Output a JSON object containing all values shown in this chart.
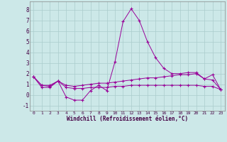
{
  "xlabel": "Windchill (Refroidissement éolien,°C)",
  "background_color": "#cce8e8",
  "grid_color": "#aacccc",
  "line_color": "#990099",
  "x": [
    0,
    1,
    2,
    3,
    4,
    5,
    6,
    7,
    8,
    9,
    10,
    11,
    12,
    13,
    14,
    15,
    16,
    17,
    18,
    19,
    20,
    21,
    22,
    23
  ],
  "line1": [
    1.7,
    0.7,
    0.7,
    1.3,
    -0.2,
    -0.5,
    -0.5,
    0.4,
    0.9,
    0.4,
    3.1,
    6.9,
    8.1,
    7.0,
    5.0,
    3.5,
    2.5,
    2.0,
    2.0,
    2.1,
    2.1,
    1.5,
    1.9,
    0.5
  ],
  "line2": [
    1.7,
    0.9,
    0.9,
    1.3,
    0.9,
    0.8,
    0.9,
    1.0,
    1.1,
    1.1,
    1.2,
    1.3,
    1.4,
    1.5,
    1.6,
    1.6,
    1.7,
    1.8,
    1.9,
    1.9,
    2.0,
    1.5,
    1.4,
    0.5
  ],
  "line3": [
    1.7,
    0.9,
    0.8,
    1.3,
    0.7,
    0.6,
    0.6,
    0.7,
    0.7,
    0.7,
    0.8,
    0.8,
    0.9,
    0.9,
    0.9,
    0.9,
    0.9,
    0.9,
    0.9,
    0.9,
    0.9,
    0.8,
    0.8,
    0.5
  ],
  "ylim": [
    -1.5,
    8.8
  ],
  "xlim": [
    -0.5,
    23.5
  ],
  "yticks": [
    -1,
    0,
    1,
    2,
    3,
    4,
    5,
    6,
    7,
    8
  ],
  "xticks": [
    0,
    1,
    2,
    3,
    4,
    5,
    6,
    7,
    8,
    9,
    10,
    11,
    12,
    13,
    14,
    15,
    16,
    17,
    18,
    19,
    20,
    21,
    22,
    23
  ]
}
